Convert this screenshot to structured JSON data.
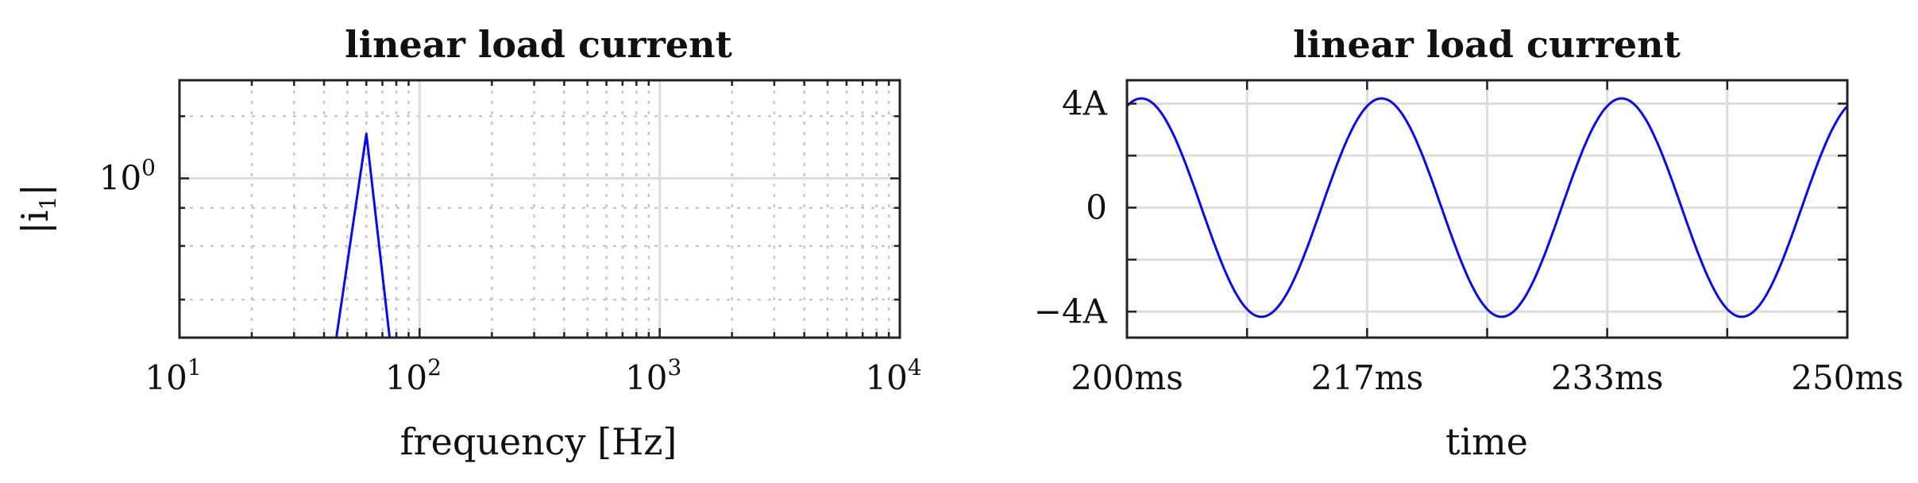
{
  "chart_data": [
    {
      "type": "line",
      "title": "linear load current",
      "xlabel": "frequency [Hz]",
      "ylabel": "|i1|",
      "ylabel_main": "|i",
      "ylabel_sub": "1",
      "ylabel_end": "|",
      "x_scale": "log",
      "y_scale": "log",
      "xlim": [
        10,
        10000
      ],
      "ylim": [
        0.3,
        2.1
      ],
      "x_ticks": [
        {
          "base": "10",
          "exp": "1",
          "value": 10
        },
        {
          "base": "10",
          "exp": "2",
          "value": 100
        },
        {
          "base": "10",
          "exp": "3",
          "value": 1000
        },
        {
          "base": "10",
          "exp": "4",
          "value": 10000
        }
      ],
      "y_ticks": [
        {
          "base": "10",
          "exp": "0",
          "value": 1
        }
      ],
      "grid": "major and minor",
      "series": [
        {
          "color": "#0a0af0",
          "x": [
            45,
            60,
            75
          ],
          "y": [
            0.3,
            1.4,
            0.3
          ]
        }
      ]
    },
    {
      "type": "line",
      "title": "linear load current",
      "xlabel": "time",
      "ylabel": "",
      "xlim": [
        200,
        250
      ],
      "ylim": [
        -5,
        4.9
      ],
      "x_ticks": [
        {
          "label": "200ms",
          "value": 200
        },
        {
          "label": "217ms",
          "value": 216.67
        },
        {
          "label": "233ms",
          "value": 233.33
        },
        {
          "label": "250ms",
          "value": 250
        }
      ],
      "y_ticks": [
        {
          "label": "4A",
          "value": 4
        },
        {
          "label": "0",
          "value": 0
        },
        {
          "label": "−4A",
          "value": -4
        }
      ],
      "grid": "on",
      "series": [
        {
          "color": "#0a0af0",
          "function": "sine",
          "amplitude": 4.2,
          "period_ms": 16.667,
          "phase_peak_at_ms": 201,
          "x_range": [
            200,
            250
          ]
        }
      ]
    }
  ]
}
